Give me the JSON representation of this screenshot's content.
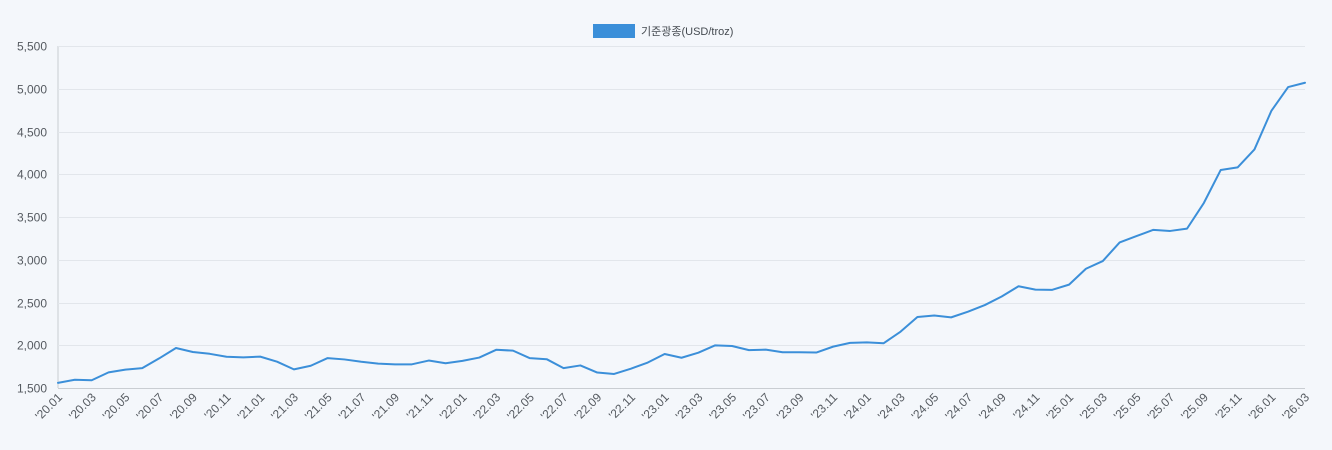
{
  "chart_data": {
    "type": "line",
    "categories": [
      "'20.01",
      "'20.02",
      "'20.03",
      "'20.04",
      "'20.05",
      "'20.06",
      "'20.07",
      "'20.08",
      "'20.09",
      "'20.10",
      "'20.11",
      "'20.12",
      "'21.01",
      "'21.02",
      "'21.03",
      "'21.04",
      "'21.05",
      "'21.06",
      "'21.07",
      "'21.08",
      "'21.09",
      "'21.10",
      "'21.11",
      "'21.12",
      "'22.01",
      "'22.02",
      "'22.03",
      "'22.04",
      "'22.05",
      "'22.06",
      "'22.07",
      "'22.08",
      "'22.09",
      "'22.10",
      "'22.11",
      "'22.12",
      "'23.01",
      "'23.02",
      "'23.03",
      "'23.04",
      "'23.05",
      "'23.06",
      "'23.07",
      "'23.08",
      "'23.09",
      "'23.10",
      "'23.11",
      "'23.12",
      "'24.01",
      "'24.02",
      "'24.03",
      "'24.04",
      "'24.05",
      "'24.06",
      "'24.07",
      "'24.08",
      "'24.09",
      "'24.10",
      "'24.11",
      "'24.12",
      "'25.01",
      "'25.02",
      "'25.03",
      "'25.04",
      "'25.05",
      "'25.06",
      "'25.07",
      "'25.08",
      "'25.09",
      "'25.10",
      "'25.11",
      "'25.12",
      "'26.01",
      "'26.02",
      "'26.03"
    ],
    "series": [
      {
        "name": "기준광종(USD/troz)",
        "color": "#3b8fd9",
        "values": [
          1560,
          1597,
          1591,
          1683,
          1715,
          1732,
          1846,
          1968,
          1921,
          1900,
          1866,
          1858,
          1867,
          1808,
          1718,
          1760,
          1850,
          1834,
          1807,
          1785,
          1776,
          1777,
          1821,
          1790,
          1817,
          1856,
          1947,
          1937,
          1849,
          1837,
          1733,
          1764,
          1681,
          1664,
          1726,
          1798,
          1898,
          1854,
          1913,
          1999,
          1991,
          1943,
          1949,
          1918,
          1918,
          1915,
          1984,
          2028,
          2033,
          2024,
          2159,
          2331,
          2348,
          2326,
          2392,
          2470,
          2570,
          2690,
          2651,
          2648,
          2709,
          2895,
          2985,
          3202,
          3277,
          3350,
          3337,
          3364,
          3665,
          4050,
          4080,
          4290,
          4740,
          5020,
          5070
        ]
      }
    ],
    "y_tick_labels": [
      "1,500",
      "2,000",
      "2,500",
      "3,000",
      "3,500",
      "4,000",
      "4,500",
      "5,000",
      "5,500"
    ],
    "ylim": [
      1500,
      5500
    ],
    "xlabel": "",
    "ylabel": "",
    "grid": true,
    "legend_position": "top-center"
  }
}
